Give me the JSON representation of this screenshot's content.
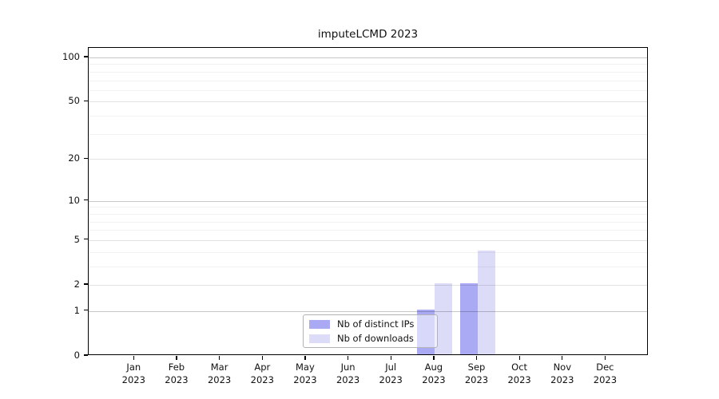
{
  "chart_data": {
    "type": "bar",
    "title": "imputeLCMD 2023",
    "categories": [
      "Jan",
      "Feb",
      "Mar",
      "Apr",
      "May",
      "Jun",
      "Jul",
      "Aug",
      "Sep",
      "Oct",
      "Nov",
      "Dec"
    ],
    "year_label": "2023",
    "series": [
      {
        "name": "Nb of distinct IPs",
        "color": "#a9a9f4",
        "values": [
          0,
          0,
          0,
          0,
          0,
          0,
          0,
          1,
          2,
          0,
          0,
          0
        ]
      },
      {
        "name": "Nb of downloads",
        "color": "#dcdcf9",
        "values": [
          0,
          0,
          0,
          0,
          0,
          0,
          0,
          2,
          4,
          0,
          0,
          0
        ]
      }
    ],
    "y_axis": {
      "scale": "log1p",
      "ticks": [
        0,
        1,
        2,
        5,
        10,
        20,
        50,
        100
      ],
      "range": [
        0,
        116
      ]
    },
    "gridlines": {
      "decade": [
        1,
        10,
        100
      ],
      "labeled": [
        2,
        5,
        20,
        50
      ],
      "minor": [
        3,
        4,
        6,
        7,
        8,
        9,
        30,
        40,
        60,
        70,
        80,
        90
      ],
      "orientation": "horizontal"
    },
    "legend": {
      "position": "lower center"
    },
    "colors": {
      "frame": "#000000",
      "background": "#ffffff",
      "grid_decade": "rgba(0,0,0,0.22)",
      "grid_labeled": "rgba(0,0,0,0.11)",
      "grid_minor": "rgba(0,0,0,0.05)"
    }
  }
}
